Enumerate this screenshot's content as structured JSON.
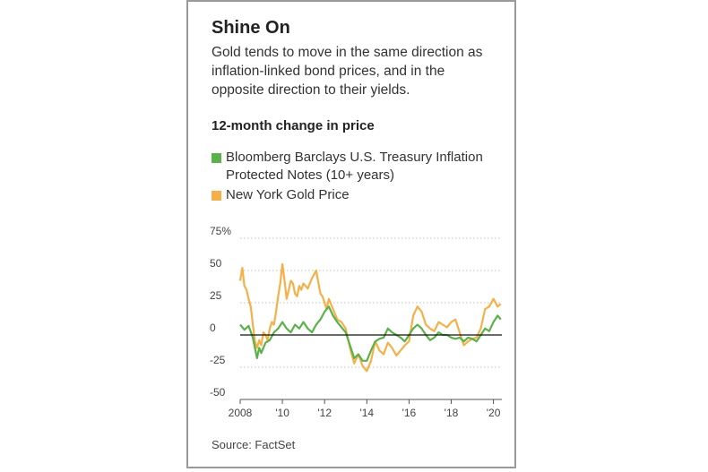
{
  "header": {
    "title": "Shine On",
    "subtitle": "Gold tends to move in the same direction as inflation-linked bond prices, and in the opposite direction to their yields.",
    "label": "12-month change in price"
  },
  "legend": [
    {
      "name": "Bloomberg Barclays U.S. Treasury Inflation Protected Notes (10+ years)",
      "color": "#5bb14a"
    },
    {
      "name": "New York Gold Price",
      "color": "#f5b04a"
    }
  ],
  "source": "Source: FactSet",
  "chart_data": {
    "type": "line",
    "title": "Shine On",
    "subtitle": "12-month change in price",
    "xlabel": "",
    "ylabel": "%",
    "xlim": [
      2008.0,
      2020.4
    ],
    "ylim": [
      -50,
      75
    ],
    "yticks": [
      75,
      50,
      25,
      0,
      -25,
      -50
    ],
    "ytick_labels": [
      "75%",
      "50",
      "25",
      "0",
      "-25",
      "-50"
    ],
    "xticks": [
      2008,
      2010,
      2012,
      2014,
      2016,
      2018,
      2020
    ],
    "xtick_labels": [
      "2008",
      "'10",
      "'12",
      "'14",
      "'16",
      "'18",
      "'20"
    ],
    "series": [
      {
        "name": "New York Gold Price",
        "color": "#f5b04a",
        "x": [
          2008.0,
          2008.1,
          2008.2,
          2008.3,
          2008.4,
          2008.5,
          2008.6,
          2008.7,
          2008.8,
          2008.9,
          2009.0,
          2009.1,
          2009.2,
          2009.3,
          2009.4,
          2009.5,
          2009.6,
          2009.7,
          2009.8,
          2009.9,
          2010.0,
          2010.1,
          2010.2,
          2010.3,
          2010.4,
          2010.5,
          2010.6,
          2010.7,
          2010.8,
          2010.9,
          2011.0,
          2011.2,
          2011.4,
          2011.6,
          2011.8,
          2011.9,
          2012.0,
          2012.1,
          2012.2,
          2012.4,
          2012.6,
          2012.8,
          2013.0,
          2013.2,
          2013.4,
          2013.6,
          2013.8,
          2014.0,
          2014.2,
          2014.4,
          2014.6,
          2014.8,
          2015.0,
          2015.2,
          2015.4,
          2015.6,
          2015.8,
          2016.0,
          2016.2,
          2016.4,
          2016.6,
          2016.8,
          2017.0,
          2017.2,
          2017.4,
          2017.6,
          2017.8,
          2018.0,
          2018.2,
          2018.4,
          2018.6,
          2018.8,
          2019.0,
          2019.2,
          2019.4,
          2019.6,
          2019.8,
          2020.0,
          2020.2,
          2020.35
        ],
        "values": [
          42,
          52,
          38,
          35,
          28,
          22,
          8,
          -5,
          -10,
          -4,
          -8,
          2,
          0,
          -4,
          5,
          10,
          8,
          18,
          30,
          40,
          55,
          42,
          28,
          35,
          42,
          40,
          32,
          30,
          38,
          35,
          40,
          36,
          44,
          50,
          32,
          30,
          25,
          20,
          28,
          20,
          12,
          10,
          5,
          -10,
          -22,
          -15,
          -24,
          -28,
          -20,
          -5,
          -12,
          -15,
          -6,
          -10,
          -16,
          -12,
          -8,
          -5,
          15,
          22,
          18,
          8,
          5,
          3,
          10,
          8,
          6,
          10,
          12,
          2,
          -8,
          -5,
          -3,
          -2,
          5,
          20,
          22,
          28,
          22,
          24
        ]
      },
      {
        "name": "Bloomberg Barclays U.S. Treasury Inflation Protected Notes (10+ years)",
        "color": "#5bb14a",
        "x": [
          2008.0,
          2008.2,
          2008.4,
          2008.6,
          2008.8,
          2008.9,
          2009.0,
          2009.2,
          2009.4,
          2009.6,
          2009.8,
          2010.0,
          2010.2,
          2010.4,
          2010.6,
          2010.8,
          2011.0,
          2011.2,
          2011.4,
          2011.6,
          2011.8,
          2012.0,
          2012.2,
          2012.4,
          2012.6,
          2012.8,
          2013.0,
          2013.2,
          2013.4,
          2013.6,
          2013.8,
          2014.0,
          2014.2,
          2014.4,
          2014.6,
          2014.8,
          2015.0,
          2015.2,
          2015.4,
          2015.6,
          2015.8,
          2016.0,
          2016.2,
          2016.4,
          2016.6,
          2016.8,
          2017.0,
          2017.2,
          2017.4,
          2017.6,
          2017.8,
          2018.0,
          2018.2,
          2018.4,
          2018.6,
          2018.8,
          2019.0,
          2019.2,
          2019.4,
          2019.6,
          2019.8,
          2020.0,
          2020.2,
          2020.35
        ],
        "values": [
          8,
          4,
          7,
          -2,
          -18,
          -10,
          -14,
          -6,
          -4,
          2,
          5,
          10,
          5,
          2,
          8,
          5,
          10,
          5,
          2,
          8,
          12,
          18,
          22,
          15,
          10,
          6,
          2,
          -8,
          -18,
          -15,
          -20,
          -20,
          -12,
          -5,
          -3,
          -2,
          5,
          2,
          0,
          -2,
          -5,
          0,
          5,
          8,
          5,
          0,
          -4,
          -2,
          2,
          0,
          0,
          -2,
          -3,
          -2,
          -5,
          -2,
          -3,
          -5,
          0,
          5,
          3,
          10,
          15,
          12
        ]
      }
    ]
  }
}
